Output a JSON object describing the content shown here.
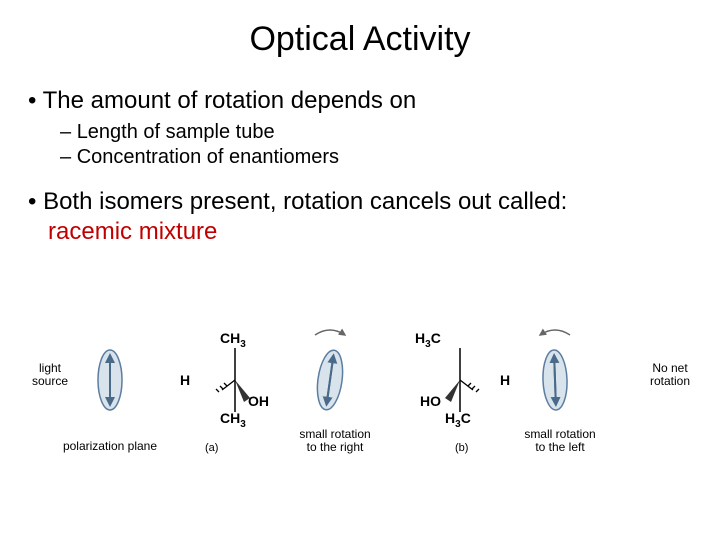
{
  "title": "Optical Activity",
  "bullets": {
    "main1": "The amount of rotation depends on",
    "sub1": "Length of sample tube",
    "sub2": "Concentration of enantiomers",
    "main2_a": "Both isomers present, rotation cancels out called: ",
    "main2_b": "racemic mixture"
  },
  "diagram": {
    "light_source": "light\nsource",
    "polarization_plane": "polarization plane",
    "H_left": "H",
    "H_right": "H",
    "CH3_top_a": "CH₃",
    "OH_a": "OH",
    "CH3_bot_a": "CH₃",
    "H3C_top_b": "H₃C",
    "HO_b": "HO",
    "H3C_bot_b": "H₃C",
    "rot_right": "small rotation\nto the right",
    "rot_left": "small rotation\nto the left",
    "no_net": "No net\nrotation",
    "label_a": "(a)",
    "label_b": "(b)",
    "colors": {
      "ellipse_stroke": "#5b7da0",
      "ellipse_fill": "#d8e3ec",
      "arrow_stroke": "#4a6a8a",
      "wedge_fill": "#333333",
      "curve_stroke": "#666666"
    }
  }
}
